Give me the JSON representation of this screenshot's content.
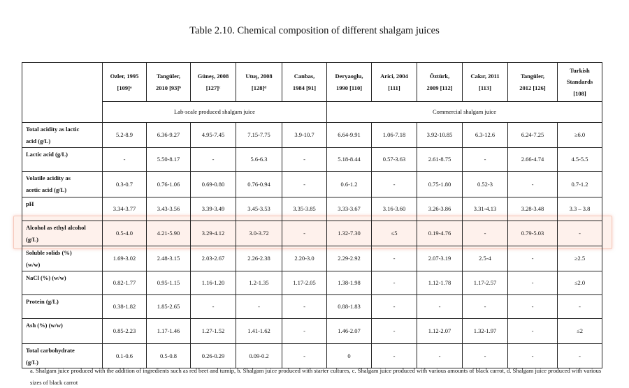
{
  "caption": "Table 2.10. Chemical composition of different shalgam juices",
  "columns": [
    {
      "line1": "Ozler, 1995",
      "line2": "[109]ᵃ"
    },
    {
      "line1": "Tangüler,",
      "line2": "2010 [93]ᵇ"
    },
    {
      "line1": "Güneş, 2008",
      "line2": "[127]ᶜ"
    },
    {
      "line1": "Utuş, 2008",
      "line2": "[128]ᵈ"
    },
    {
      "line1": "Canbas,",
      "line2": "1984 [91]"
    },
    {
      "line1": "Deryaoglu,",
      "line2": "1990 [110]"
    },
    {
      "line1": "Arici, 2004",
      "line2": "[111]"
    },
    {
      "line1": "Öztürk,",
      "line2": "2009 [112]"
    },
    {
      "line1": "Cakır, 2011",
      "line2": "[113]"
    },
    {
      "line1": "Tangüler,",
      "line2": "2012 [126]"
    },
    {
      "line1": "Turkish",
      "line2": "Standards",
      "line3": "[108]"
    }
  ],
  "groups": {
    "lab": "Lab-scale produced shalgam juice",
    "commercial": "Commercial shalgam juice"
  },
  "rows": [
    {
      "label1": "Total acidity as lactic",
      "label2": "acid (g/L)",
      "values": [
        "5.2-8.9",
        "6.36-9.27",
        "4.95-7.45",
        "7.15-7.75",
        "3.9-10.7",
        "6.64-9.91",
        "1.06-7.18",
        "3.92-10.85",
        "6.3-12.6",
        "6.24-7.25",
        "≥6.0"
      ]
    },
    {
      "label1": "Lactic acid (g/L)",
      "label2": "",
      "values": [
        "-",
        "5.50-8.17",
        "-",
        "5.6-6.3",
        "-",
        "5.18-8.44",
        "0.57-3.63",
        "2.61-8.75",
        "-",
        "2.66-4.74",
        "4.5-5.5"
      ]
    },
    {
      "label1": "Volatile acidity as",
      "label2": "acetic acid (g/L)",
      "values": [
        "0.3-0.7",
        "0.76-1.06",
        "0.69-0.80",
        "0.76-0.94",
        "-",
        "0.6-1.2",
        "-",
        "0.75-1.80",
        "0.52-3",
        "-",
        "0.7-1.2"
      ]
    },
    {
      "label1": "pH",
      "label2": "",
      "values": [
        "3.34-3.77",
        "3.43-3.56",
        "3.39-3.49",
        "3.45-3.53",
        "3.35-3.85",
        "3.33-3.67",
        "3.16-3.60",
        "3.26-3.86",
        "3.31-4.13",
        "3.28-3.48",
        "3.3 – 3.8"
      ]
    },
    {
      "label1": "Alcohol as ethyl alcohol",
      "label2": "(g/L)",
      "values": [
        "0.5-4.0",
        "4.21-5.90",
        "3.29-4.12",
        "3.0-3.72",
        "-",
        "1.32-7.30",
        "≤5",
        "0.19-4.76",
        "-",
        "0.79-5.03",
        "-"
      ]
    },
    {
      "label1": "Soluble solids (%)",
      "label2": "(w/w)",
      "values": [
        "1.69-3.02",
        "2.48-3.15",
        "2.03-2.67",
        "2.26-2.38",
        "2.20-3.0",
        "2.29-2.92",
        "-",
        "2.07-3.19",
        "2.5-4",
        "-",
        "≥2.5"
      ]
    },
    {
      "label1": "NaCl (%) (w/w)",
      "label2": "",
      "values": [
        "0.82-1.77",
        "0.95-1.15",
        "1.16-1.20",
        "1.2-1.35",
        "1.17-2.05",
        "1.38-1.98",
        "-",
        "1.12-1.78",
        "1.17-2.57",
        "-",
        "≤2.0"
      ]
    },
    {
      "label1": "Protein (g/L)",
      "label2": "",
      "values": [
        "0.38-1.82",
        "1.85-2.65",
        "-",
        "-",
        "-",
        "0.88-1.83",
        "-",
        "-",
        "-",
        "-",
        "-"
      ]
    },
    {
      "label1": "Ash (%) (w/w)",
      "label2": "",
      "values": [
        "0.85-2.23",
        "1.17-1.46",
        "1.27-1.52",
        "1.41-1.62",
        "-",
        "1.46-2.07",
        "-",
        "1.12-2.07",
        "1.32-1.97",
        "-",
        "≤2"
      ]
    },
    {
      "label1": "Total carbohydrate",
      "label2": "(g/L)",
      "values": [
        "0.1-0.6",
        "0.5-0.8",
        "0.26-0.29",
        "0.09-0.2",
        "-",
        "0",
        "-",
        "-",
        "-",
        "-",
        "-"
      ]
    }
  ],
  "footnote": "a. Shalgam juice produced with the addition of ingredients such as red beet and turnip, b. Shalgam juice produced with starter cultures, c. Shalgam juice produced with various amounts of black carrot, d. Shalgam juice produced with various sizes of black carrot",
  "highlight_row": "Alcohol as ethyl alcohol",
  "highlight_color": "#f7c9b4"
}
